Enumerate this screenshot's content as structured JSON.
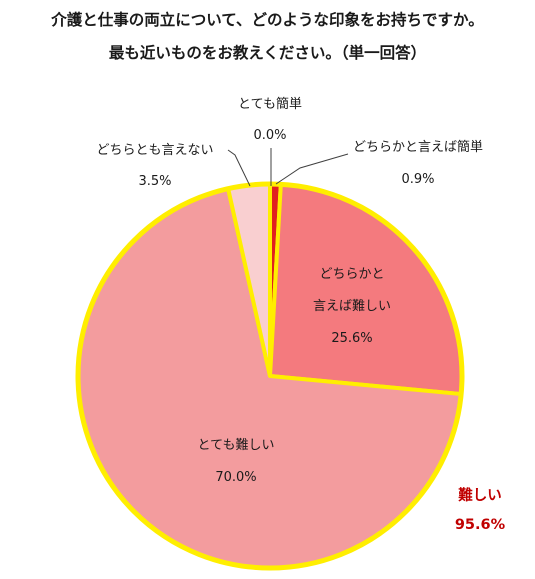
{
  "title_line1": "介護と仕事の両立について、どのような印象をお持ちですか。",
  "title_line2": "最も近いものをお教えください。（単一回答）",
  "colors": {
    "outline": "#ffee00",
    "leader": "#404040",
    "total_text": "#c00000"
  },
  "chart_data": {
    "type": "pie",
    "title": "介護と仕事の両立について、どのような印象をお持ちですか。最も近いものをお教えください。（単一回答）",
    "start": "12 o'clock",
    "direction": "clockwise",
    "unit": "%",
    "slices": [
      {
        "label": "とても簡単",
        "value": 0.0,
        "value_label": "0.0%",
        "color": "#c00000"
      },
      {
        "label": "どちらかと言えば簡単",
        "value": 0.9,
        "value_label": "0.9%",
        "color": "#e02020"
      },
      {
        "label": "どちらかと言えば難しい",
        "label_lines": [
          "どちらかと",
          "言えば難しい"
        ],
        "value": 25.6,
        "value_label": "25.6%",
        "color": "#f47a7e"
      },
      {
        "label": "とても難しい",
        "value": 70.0,
        "value_label": "70.0%",
        "color": "#f39c9e"
      },
      {
        "label": "どちらとも言えない",
        "value": 3.5,
        "value_label": "3.5%",
        "color": "#f9cfd0"
      }
    ],
    "annotation": {
      "label": "難しい",
      "value_label": "95.6%"
    }
  }
}
